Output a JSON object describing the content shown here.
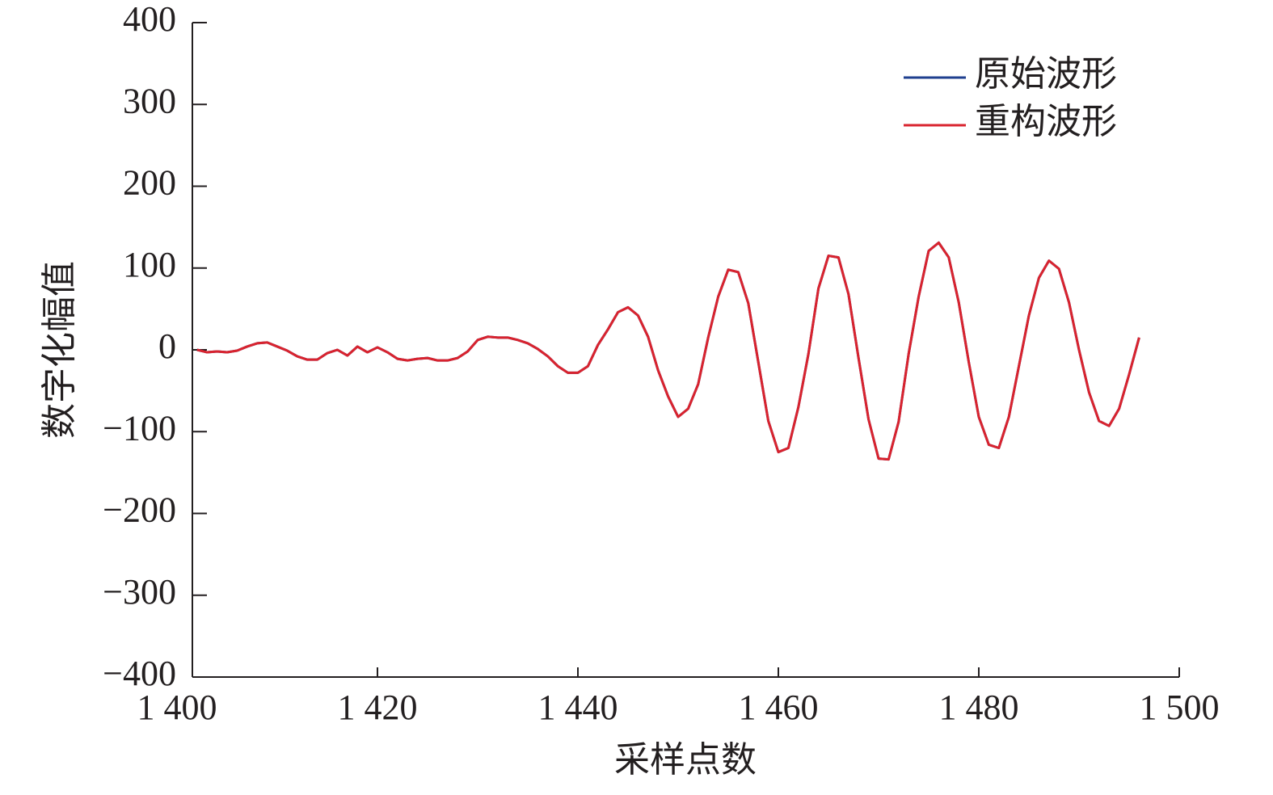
{
  "chart_data": {
    "type": "line",
    "xlabel": "采样点数",
    "ylabel": "数字化幅值",
    "legend": "upper right",
    "xlim": [
      1400,
      1500
    ],
    "xticks": [
      {
        "value": 1400,
        "label": "1 400"
      },
      {
        "value": 1420,
        "label": "1 420"
      },
      {
        "value": 1440,
        "label": "1 440"
      },
      {
        "value": 1460,
        "label": "1 460"
      },
      {
        "value": 1480,
        "label": "1 480"
      },
      {
        "value": 1500,
        "label": "1 500"
      }
    ],
    "ylim": [
      -400,
      400
    ],
    "yticks": [
      {
        "value": -400,
        "label": "−400"
      },
      {
        "value": -300,
        "label": "−300"
      },
      {
        "value": -200,
        "label": "−200"
      },
      {
        "value": -100,
        "label": "−100"
      },
      0,
      100,
      200,
      300,
      400
    ],
    "x": [
      1402,
      1403,
      1404,
      1405,
      1406,
      1407,
      1408,
      1409,
      1410,
      1411,
      1412,
      1413,
      1414,
      1415,
      1416,
      1417,
      1418,
      1419,
      1420,
      1421,
      1422,
      1423,
      1424,
      1425,
      1426,
      1427,
      1428,
      1429,
      1430,
      1431,
      1432,
      1433,
      1434,
      1435,
      1436,
      1437,
      1438,
      1439,
      1440,
      1441,
      1442,
      1443,
      1444,
      1445,
      1446,
      1447,
      1448,
      1449,
      1450,
      1451,
      1452,
      1453,
      1454,
      1455,
      1456,
      1457,
      1458,
      1459,
      1460,
      1461,
      1462,
      1463,
      1464,
      1465,
      1466,
      1467,
      1468,
      1469,
      1470,
      1471,
      1472,
      1473,
      1474,
      1475,
      1476,
      1477,
      1478,
      1479,
      1480,
      1481,
      1482,
      1483,
      1484,
      1485,
      1486,
      1487,
      1488,
      1489,
      1490,
      1491,
      1492,
      1493,
      1494,
      1495,
      1496
    ],
    "series": [
      {
        "name": "原始波形",
        "color": "#1f3f8f",
        "values": [
          0,
          -3,
          -2,
          -3,
          -1,
          4,
          8,
          9,
          4,
          -1,
          -8,
          -12,
          -12,
          -4,
          0,
          -7,
          4,
          -3,
          3,
          -3,
          -11,
          -13,
          -11,
          -10,
          -13,
          -13,
          -10,
          -2,
          12,
          16,
          15,
          15,
          12,
          8,
          1,
          -8,
          -20,
          -28,
          -28,
          -20,
          6,
          25,
          46,
          52,
          42,
          16,
          -25,
          -57,
          -82,
          -72,
          -42,
          15,
          65,
          98,
          95,
          57,
          -15,
          -87,
          -125,
          -120,
          -70,
          -5,
          75,
          115,
          113,
          68,
          -10,
          -85,
          -133,
          -134,
          -88,
          -5,
          65,
          121,
          131,
          113,
          58,
          -15,
          -82,
          -116,
          -120,
          -82,
          -20,
          42,
          88,
          109,
          99,
          58,
          0,
          -52,
          -87,
          -93,
          -72,
          -30,
          15
        ]
      },
      {
        "name": "重构波形",
        "color": "#d9232e",
        "values": [
          0,
          -3,
          -2,
          -3,
          -1,
          4,
          8,
          9,
          4,
          -1,
          -8,
          -12,
          -12,
          -4,
          0,
          -7,
          4,
          -3,
          3,
          -3,
          -11,
          -13,
          -11,
          -10,
          -13,
          -13,
          -10,
          -2,
          12,
          16,
          15,
          15,
          12,
          8,
          1,
          -8,
          -20,
          -28,
          -28,
          -20,
          6,
          25,
          46,
          52,
          42,
          16,
          -25,
          -57,
          -82,
          -72,
          -42,
          15,
          65,
          98,
          95,
          57,
          -15,
          -87,
          -125,
          -120,
          -70,
          -5,
          75,
          115,
          113,
          68,
          -10,
          -85,
          -133,
          -134,
          -88,
          -5,
          65,
          121,
          131,
          113,
          58,
          -15,
          -82,
          -116,
          -120,
          -82,
          -20,
          42,
          88,
          109,
          99,
          58,
          0,
          -52,
          -87,
          -93,
          -72,
          -30,
          15
        ]
      }
    ]
  }
}
